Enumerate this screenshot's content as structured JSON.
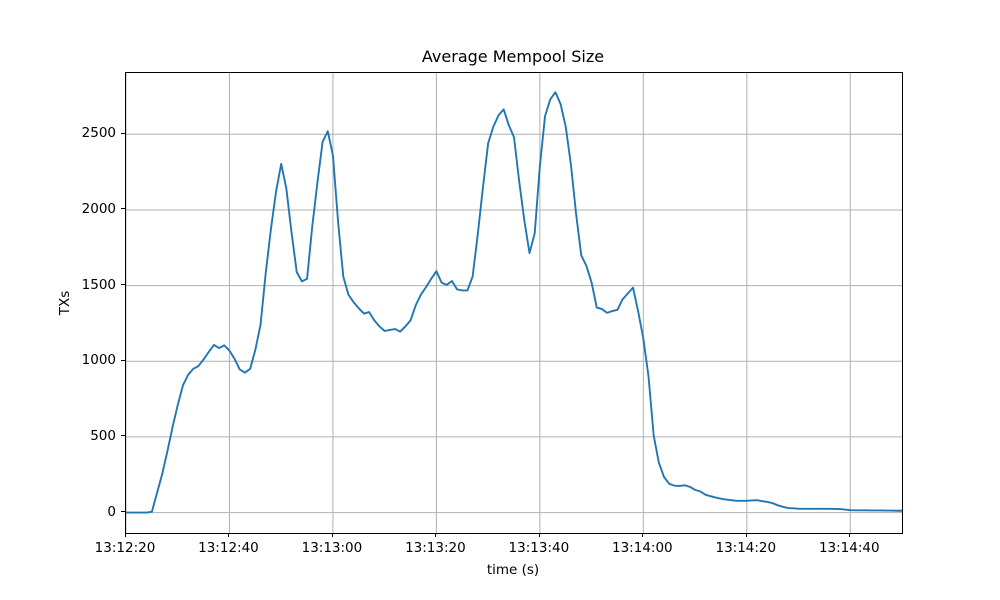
{
  "colors": {
    "line": "#1f77b4",
    "grid": "#b0b0b0",
    "axis": "#000000",
    "background": "#ffffff",
    "text": "#000000"
  },
  "chart_data": {
    "type": "line",
    "title": "Average Mempool Size",
    "xlabel": "time (s)",
    "ylabel": "TXs",
    "grid": true,
    "legend_position": "none",
    "x_axis_is_time": true,
    "x_start_time": "13:12:20",
    "x_tick_labels": [
      "13:12:20",
      "13:12:40",
      "13:13:00",
      "13:13:20",
      "13:13:40",
      "13:14:00",
      "13:14:20",
      "13:14:40"
    ],
    "x_tick_seconds": [
      0,
      20,
      40,
      60,
      80,
      100,
      120,
      140
    ],
    "y_tick_labels": [
      "0",
      "500",
      "1000",
      "1500",
      "2000",
      "2500"
    ],
    "y_ticks": [
      0,
      500,
      1000,
      1500,
      2000,
      2500
    ],
    "xlim_seconds": [
      0,
      150
    ],
    "ylim": [
      -135,
      2905
    ],
    "series": [
      {
        "name": "average-mempool-size",
        "color": "#1f77b4",
        "points_format": "[seconds_after_13:12:20, TXs]",
        "points": [
          [
            0,
            0
          ],
          [
            2,
            0
          ],
          [
            4,
            0
          ],
          [
            5,
            5
          ],
          [
            6,
            130
          ],
          [
            7,
            255
          ],
          [
            8,
            405
          ],
          [
            9,
            565
          ],
          [
            10,
            710
          ],
          [
            11,
            840
          ],
          [
            12,
            910
          ],
          [
            13,
            950
          ],
          [
            14,
            968
          ],
          [
            15,
            1012
          ],
          [
            16,
            1062
          ],
          [
            17,
            1108
          ],
          [
            18,
            1087
          ],
          [
            19,
            1105
          ],
          [
            20,
            1070
          ],
          [
            21,
            1015
          ],
          [
            22,
            945
          ],
          [
            23,
            925
          ],
          [
            24,
            950
          ],
          [
            25,
            1075
          ],
          [
            26,
            1240
          ],
          [
            27,
            1580
          ],
          [
            28,
            1870
          ],
          [
            29,
            2120
          ],
          [
            30,
            2305
          ],
          [
            31,
            2140
          ],
          [
            32,
            1850
          ],
          [
            33,
            1590
          ],
          [
            34,
            1528
          ],
          [
            35,
            1545
          ],
          [
            36,
            1890
          ],
          [
            37,
            2180
          ],
          [
            38,
            2450
          ],
          [
            39,
            2520
          ],
          [
            40,
            2360
          ],
          [
            41,
            1920
          ],
          [
            42,
            1560
          ],
          [
            43,
            1440
          ],
          [
            44,
            1390
          ],
          [
            45,
            1350
          ],
          [
            46,
            1315
          ],
          [
            47,
            1325
          ],
          [
            48,
            1270
          ],
          [
            49,
            1230
          ],
          [
            50,
            1200
          ],
          [
            51,
            1207
          ],
          [
            52,
            1213
          ],
          [
            53,
            1196
          ],
          [
            54,
            1230
          ],
          [
            55,
            1270
          ],
          [
            56,
            1370
          ],
          [
            57,
            1440
          ],
          [
            58,
            1490
          ],
          [
            59,
            1545
          ],
          [
            60,
            1595
          ],
          [
            61,
            1520
          ],
          [
            62,
            1505
          ],
          [
            63,
            1530
          ],
          [
            64,
            1475
          ],
          [
            65,
            1468
          ],
          [
            66,
            1468
          ],
          [
            67,
            1560
          ],
          [
            68,
            1840
          ],
          [
            69,
            2150
          ],
          [
            70,
            2440
          ],
          [
            71,
            2550
          ],
          [
            72,
            2625
          ],
          [
            73,
            2665
          ],
          [
            74,
            2560
          ],
          [
            75,
            2480
          ],
          [
            76,
            2190
          ],
          [
            77,
            1930
          ],
          [
            78,
            1715
          ],
          [
            79,
            1845
          ],
          [
            80,
            2290
          ],
          [
            81,
            2620
          ],
          [
            82,
            2730
          ],
          [
            83,
            2778
          ],
          [
            84,
            2700
          ],
          [
            85,
            2550
          ],
          [
            86,
            2300
          ],
          [
            87,
            1975
          ],
          [
            88,
            1700
          ],
          [
            89,
            1630
          ],
          [
            90,
            1520
          ],
          [
            91,
            1355
          ],
          [
            92,
            1345
          ],
          [
            93,
            1320
          ],
          [
            94,
            1332
          ],
          [
            95,
            1340
          ],
          [
            96,
            1410
          ],
          [
            97,
            1448
          ],
          [
            98,
            1487
          ],
          [
            99,
            1330
          ],
          [
            100,
            1150
          ],
          [
            101,
            900
          ],
          [
            102,
            510
          ],
          [
            103,
            330
          ],
          [
            104,
            235
          ],
          [
            105,
            190
          ],
          [
            106,
            178
          ],
          [
            107,
            176
          ],
          [
            108,
            180
          ],
          [
            109,
            170
          ],
          [
            110,
            150
          ],
          [
            111,
            140
          ],
          [
            112,
            118
          ],
          [
            113,
            108
          ],
          [
            114,
            99
          ],
          [
            115,
            92
          ],
          [
            116,
            86
          ],
          [
            117,
            82
          ],
          [
            118,
            78
          ],
          [
            119,
            78
          ],
          [
            120,
            78
          ],
          [
            121,
            80
          ],
          [
            122,
            82
          ],
          [
            123,
            75
          ],
          [
            124,
            70
          ],
          [
            125,
            62
          ],
          [
            126,
            48
          ],
          [
            127,
            38
          ],
          [
            128,
            30
          ],
          [
            129,
            28
          ],
          [
            130,
            26
          ],
          [
            131,
            25
          ],
          [
            132,
            25
          ],
          [
            133,
            25
          ],
          [
            134,
            25
          ],
          [
            135,
            25
          ],
          [
            136,
            25
          ],
          [
            137,
            24
          ],
          [
            138,
            23
          ],
          [
            139,
            20
          ],
          [
            140,
            16
          ],
          [
            141,
            15
          ],
          [
            142,
            15
          ],
          [
            143,
            15
          ],
          [
            144,
            14
          ],
          [
            145,
            14
          ],
          [
            146,
            14
          ],
          [
            147,
            13
          ],
          [
            148,
            13
          ],
          [
            149,
            12
          ],
          [
            150,
            12
          ]
        ]
      }
    ]
  }
}
